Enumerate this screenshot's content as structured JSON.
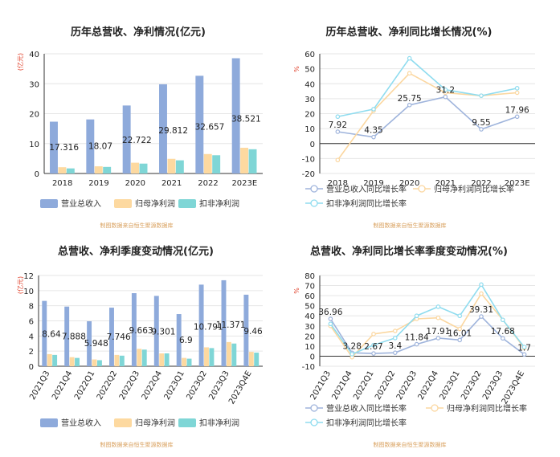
{
  "colors": {
    "revenue": "#8eaadb",
    "net_profit": "#fdd9a0",
    "deducted_profit": "#7fd6d6",
    "revenue_line": "#9fb4dc",
    "net_profit_line": "#fbd7a0",
    "deducted_profit_line": "#8fdcef",
    "unit_label": "#e0402a",
    "source": "#d9a15f",
    "axis": "#333333",
    "grid": "#e6e6e6"
  },
  "source_text": "制图数据来自恒生聚源数据库",
  "chart_data": [
    {
      "type": "bar",
      "title": "历年总营收、净利情况(亿元)",
      "ylabel": "(亿元)",
      "ylim": [
        0,
        40
      ],
      "yticks": [
        0,
        10,
        20,
        30,
        40
      ],
      "categories": [
        "2018",
        "2019",
        "2020",
        "2021",
        "2022",
        "2023E"
      ],
      "series": [
        {
          "name": "营业总收入",
          "values": [
            17.316,
            18.07,
            22.722,
            29.812,
            32.657,
            38.521
          ],
          "labels": [
            "17.316",
            "18.07",
            "22.722",
            "29.812",
            "32.657",
            "38.521"
          ]
        },
        {
          "name": "归母净利润",
          "values": [
            2.1,
            2.4,
            3.6,
            4.9,
            6.5,
            8.6
          ]
        },
        {
          "name": "扣非净利润",
          "values": [
            1.7,
            2.2,
            3.3,
            4.4,
            6.1,
            8.1
          ]
        }
      ],
      "grid": true,
      "legend": "bottom"
    },
    {
      "type": "line",
      "title": "历年总营收、净利同比增长情况(%)",
      "ylabel": "%",
      "ylim": [
        -20,
        60
      ],
      "yticks": [
        -20,
        -10,
        0,
        10,
        20,
        30,
        40,
        50,
        60
      ],
      "categories": [
        "2018",
        "2019",
        "2020",
        "2021",
        "2022",
        "2023E"
      ],
      "series": [
        {
          "name": "营业总收入同比增长率",
          "values": [
            7.92,
            4.35,
            25.75,
            31.2,
            9.55,
            17.96
          ],
          "labels": [
            "7.92",
            "4.35",
            "25.75",
            "31.2",
            "9.55",
            "17.96"
          ]
        },
        {
          "name": "归母净利润同比增长率",
          "values": [
            -11,
            22,
            47,
            34,
            32,
            34
          ]
        },
        {
          "name": "扣非净利润同比增长率",
          "values": [
            18,
            23,
            57,
            36,
            32,
            37
          ]
        }
      ],
      "grid": true,
      "legend": "bottom"
    },
    {
      "type": "bar",
      "title": "总营收、净利季度变动情况(亿元)",
      "ylabel": "(亿元)",
      "ylim": [
        0,
        12
      ],
      "yticks": [
        0,
        2,
        4,
        6,
        8,
        10,
        12
      ],
      "categories": [
        "2021Q3",
        "2021Q4",
        "2022Q1",
        "2022Q2",
        "2022Q3",
        "2022Q4",
        "2023Q1",
        "2023Q2",
        "2023Q3",
        "2023Q4E"
      ],
      "series": [
        {
          "name": "营业总收入",
          "values": [
            8.64,
            7.888,
            5.948,
            7.746,
            9.663,
            9.301,
            6.9,
            10.791,
            11.371,
            9.46
          ],
          "labels": [
            "8.64",
            "7.888",
            "5.948",
            "7.746",
            "9.663",
            "9.301",
            "6.9",
            "10.791",
            "11.371",
            "9.46"
          ]
        },
        {
          "name": "归母净利润",
          "values": [
            1.6,
            1.2,
            0.9,
            1.5,
            2.3,
            1.7,
            1.1,
            2.5,
            3.2,
            1.9
          ]
        },
        {
          "name": "扣非净利润",
          "values": [
            1.5,
            1.1,
            0.8,
            1.4,
            2.2,
            1.7,
            1.0,
            2.4,
            3.0,
            1.8
          ]
        }
      ],
      "grid": true,
      "legend": "bottom"
    },
    {
      "type": "line",
      "title": "总营收、净利同比增长率季度变动情况(%)",
      "ylabel": "%",
      "ylim": [
        -10,
        80
      ],
      "yticks": [
        -10,
        0,
        10,
        20,
        30,
        40,
        50,
        60,
        70,
        80
      ],
      "categories": [
        "2021Q3",
        "2021Q4",
        "2022Q1",
        "2022Q2",
        "2022Q3",
        "2022Q4",
        "2023Q1",
        "2023Q2",
        "2023Q3",
        "2023Q4E"
      ],
      "series": [
        {
          "name": "营业总收入同比增长率",
          "values": [
            36.96,
            3.28,
            2.67,
            3.4,
            11.84,
            17.91,
            16.01,
            39.31,
            17.68,
            1.7
          ],
          "labels": [
            "36.96",
            "3.28",
            "2.67",
            "3.4",
            "11.84",
            "17.91",
            "16.01",
            "39.31",
            "17.68",
            "1.7"
          ]
        },
        {
          "name": "归母净利润同比增长率",
          "values": [
            30,
            -1,
            22,
            25,
            37,
            38,
            27,
            62,
            36,
            8
          ]
        },
        {
          "name": "扣非净利润同比增长率",
          "values": [
            32,
            2,
            11,
            18,
            40,
            49,
            40,
            71,
            36,
            9
          ]
        }
      ],
      "grid": true,
      "legend": "bottom"
    }
  ]
}
